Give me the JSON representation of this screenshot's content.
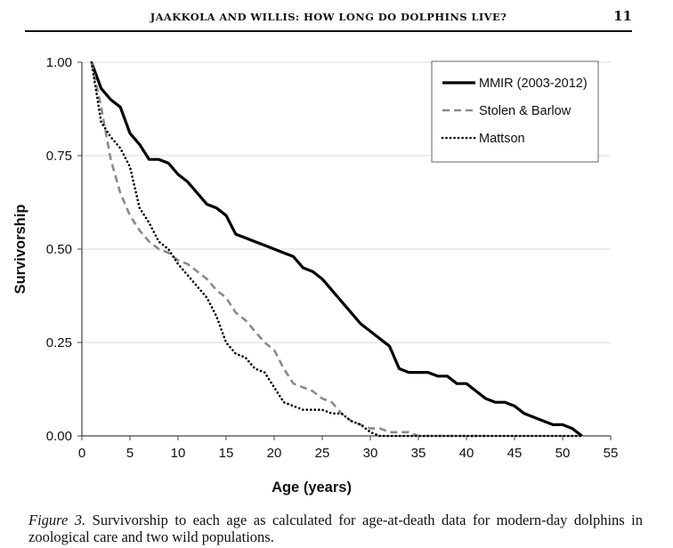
{
  "header": {
    "running_title": "JAAKKOLA AND WILLIS: HOW LONG DO DOLPHINS LIVE?",
    "page_number": "11"
  },
  "caption": {
    "figure_label": "Figure 3.",
    "text": "Survivorship to each age as calculated for age-at-death data for modern-day dolphins in zoological care and two wild populations."
  },
  "chart_data": {
    "type": "line",
    "title": "",
    "xlabel": "Age (years)",
    "ylabel": "Survivorship",
    "xlim": [
      0,
      55
    ],
    "ylim": [
      0,
      1
    ],
    "x_ticks": [
      0,
      5,
      10,
      15,
      20,
      25,
      30,
      35,
      40,
      45,
      50,
      55
    ],
    "y_ticks": [
      0,
      0.25,
      0.5,
      0.75,
      1
    ],
    "x_tick_labels": [
      "0",
      "5",
      "10",
      "15",
      "20",
      "25",
      "30",
      "35",
      "40",
      "45",
      "50",
      "55"
    ],
    "y_tick_labels": [
      "0.00",
      "0.25",
      "0.50",
      "0.75",
      "1.00"
    ],
    "grid": "horizontal",
    "legend_position": "top-right",
    "series": [
      {
        "name": "MMIR (2003-2012)",
        "style": "solid",
        "color": "#000000",
        "points": [
          [
            1,
            1.0
          ],
          [
            2,
            0.93
          ],
          [
            3,
            0.9
          ],
          [
            4,
            0.88
          ],
          [
            5,
            0.81
          ],
          [
            6,
            0.78
          ],
          [
            7,
            0.74
          ],
          [
            8,
            0.74
          ],
          [
            9,
            0.73
          ],
          [
            10,
            0.7
          ],
          [
            11,
            0.68
          ],
          [
            12,
            0.65
          ],
          [
            13,
            0.62
          ],
          [
            14,
            0.61
          ],
          [
            15,
            0.59
          ],
          [
            16,
            0.54
          ],
          [
            17,
            0.53
          ],
          [
            18,
            0.52
          ],
          [
            19,
            0.51
          ],
          [
            20,
            0.5
          ],
          [
            21,
            0.49
          ],
          [
            22,
            0.48
          ],
          [
            23,
            0.45
          ],
          [
            24,
            0.44
          ],
          [
            25,
            0.42
          ],
          [
            26,
            0.39
          ],
          [
            27,
            0.36
          ],
          [
            28,
            0.33
          ],
          [
            29,
            0.3
          ],
          [
            30,
            0.28
          ],
          [
            31,
            0.26
          ],
          [
            32,
            0.24
          ],
          [
            33,
            0.18
          ],
          [
            34,
            0.17
          ],
          [
            35,
            0.17
          ],
          [
            36,
            0.17
          ],
          [
            37,
            0.16
          ],
          [
            38,
            0.16
          ],
          [
            39,
            0.14
          ],
          [
            40,
            0.14
          ],
          [
            41,
            0.12
          ],
          [
            42,
            0.1
          ],
          [
            43,
            0.09
          ],
          [
            44,
            0.09
          ],
          [
            45,
            0.08
          ],
          [
            46,
            0.06
          ],
          [
            47,
            0.05
          ],
          [
            48,
            0.04
          ],
          [
            49,
            0.03
          ],
          [
            50,
            0.03
          ],
          [
            51,
            0.02
          ],
          [
            52,
            0.0
          ]
        ]
      },
      {
        "name": "Stolen & Barlow",
        "style": "dashed",
        "color": "#8a8a8a",
        "points": [
          [
            1,
            1.0
          ],
          [
            2,
            0.88
          ],
          [
            3,
            0.74
          ],
          [
            4,
            0.65
          ],
          [
            5,
            0.59
          ],
          [
            6,
            0.55
          ],
          [
            7,
            0.52
          ],
          [
            8,
            0.5
          ],
          [
            9,
            0.49
          ],
          [
            10,
            0.47
          ],
          [
            11,
            0.46
          ],
          [
            12,
            0.44
          ],
          [
            13,
            0.42
          ],
          [
            14,
            0.39
          ],
          [
            15,
            0.37
          ],
          [
            16,
            0.33
          ],
          [
            17,
            0.31
          ],
          [
            18,
            0.28
          ],
          [
            19,
            0.25
          ],
          [
            20,
            0.23
          ],
          [
            21,
            0.18
          ],
          [
            22,
            0.14
          ],
          [
            23,
            0.13
          ],
          [
            24,
            0.12
          ],
          [
            25,
            0.1
          ],
          [
            26,
            0.09
          ],
          [
            27,
            0.06
          ],
          [
            28,
            0.04
          ],
          [
            29,
            0.03
          ],
          [
            30,
            0.02
          ],
          [
            31,
            0.02
          ],
          [
            32,
            0.01
          ],
          [
            33,
            0.01
          ],
          [
            34,
            0.01
          ],
          [
            35,
            0.0
          ],
          [
            36,
            0.0
          ],
          [
            42,
            0.0
          ]
        ]
      },
      {
        "name": "Mattson",
        "style": "dotted",
        "color": "#000000",
        "points": [
          [
            1,
            1.0
          ],
          [
            2,
            0.84
          ],
          [
            3,
            0.8
          ],
          [
            4,
            0.77
          ],
          [
            5,
            0.72
          ],
          [
            6,
            0.61
          ],
          [
            7,
            0.57
          ],
          [
            8,
            0.52
          ],
          [
            9,
            0.5
          ],
          [
            10,
            0.46
          ],
          [
            11,
            0.43
          ],
          [
            12,
            0.4
          ],
          [
            13,
            0.37
          ],
          [
            14,
            0.32
          ],
          [
            15,
            0.25
          ],
          [
            16,
            0.22
          ],
          [
            17,
            0.21
          ],
          [
            18,
            0.18
          ],
          [
            19,
            0.17
          ],
          [
            20,
            0.13
          ],
          [
            21,
            0.09
          ],
          [
            22,
            0.08
          ],
          [
            23,
            0.07
          ],
          [
            24,
            0.07
          ],
          [
            25,
            0.07
          ],
          [
            26,
            0.06
          ],
          [
            27,
            0.06
          ],
          [
            28,
            0.04
          ],
          [
            29,
            0.03
          ],
          [
            30,
            0.01
          ],
          [
            31,
            0.0
          ],
          [
            52,
            0.0
          ]
        ]
      }
    ]
  }
}
